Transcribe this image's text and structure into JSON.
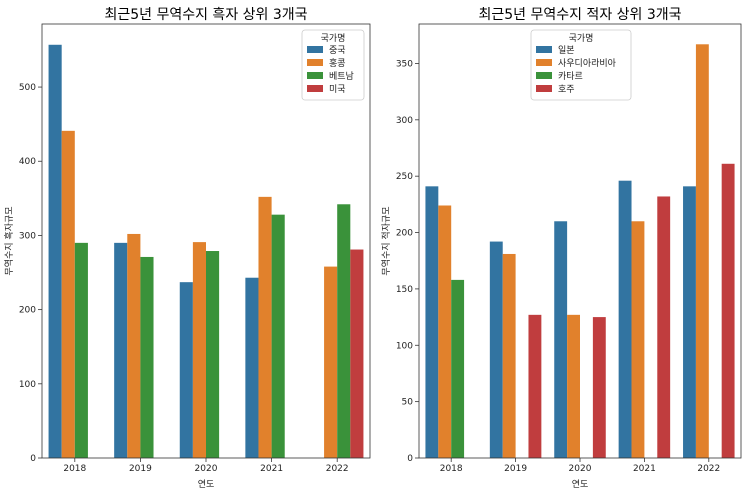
{
  "chart_data": [
    {
      "type": "bar",
      "title": "최근5년 무역수지 흑자 상위 3개국",
      "xlabel": "연도",
      "ylabel": "무역수지 흑자규모",
      "categories": [
        "2018",
        "2019",
        "2020",
        "2021",
        "2022"
      ],
      "ylim": [
        0,
        585
      ],
      "yticks": [
        0,
        100,
        200,
        300,
        400,
        500
      ],
      "legend": {
        "title": "국가명",
        "position": "top-right"
      },
      "series": [
        {
          "name": "중국",
          "color": "#3274a1",
          "values": [
            557,
            290,
            237,
            243,
            null
          ]
        },
        {
          "name": "홍콩",
          "color": "#e1812c",
          "values": [
            441,
            302,
            291,
            352,
            258
          ]
        },
        {
          "name": "베트남",
          "color": "#3a923a",
          "values": [
            290,
            271,
            279,
            328,
            342
          ]
        },
        {
          "name": "미국",
          "color": "#c03d3e",
          "values": [
            null,
            null,
            null,
            null,
            281
          ]
        }
      ]
    },
    {
      "type": "bar",
      "title": "최근5년 무역수지 적자 상위 3개국",
      "xlabel": "연도",
      "ylabel": "무역수지 적자규모",
      "categories": [
        "2018",
        "2019",
        "2020",
        "2021",
        "2022"
      ],
      "ylim": [
        0,
        385
      ],
      "yticks": [
        0,
        50,
        100,
        150,
        200,
        250,
        300,
        350
      ],
      "legend": {
        "title": "국가명",
        "position": "top-center"
      },
      "series": [
        {
          "name": "일본",
          "color": "#3274a1",
          "values": [
            241,
            192,
            210,
            246,
            241
          ]
        },
        {
          "name": "사우디아라비아",
          "color": "#e1812c",
          "values": [
            224,
            181,
            127,
            210,
            367
          ]
        },
        {
          "name": "카타르",
          "color": "#3a923a",
          "values": [
            158,
            null,
            null,
            null,
            null
          ]
        },
        {
          "name": "호주",
          "color": "#c03d3e",
          "values": [
            null,
            127,
            125,
            232,
            261
          ]
        }
      ]
    }
  ]
}
